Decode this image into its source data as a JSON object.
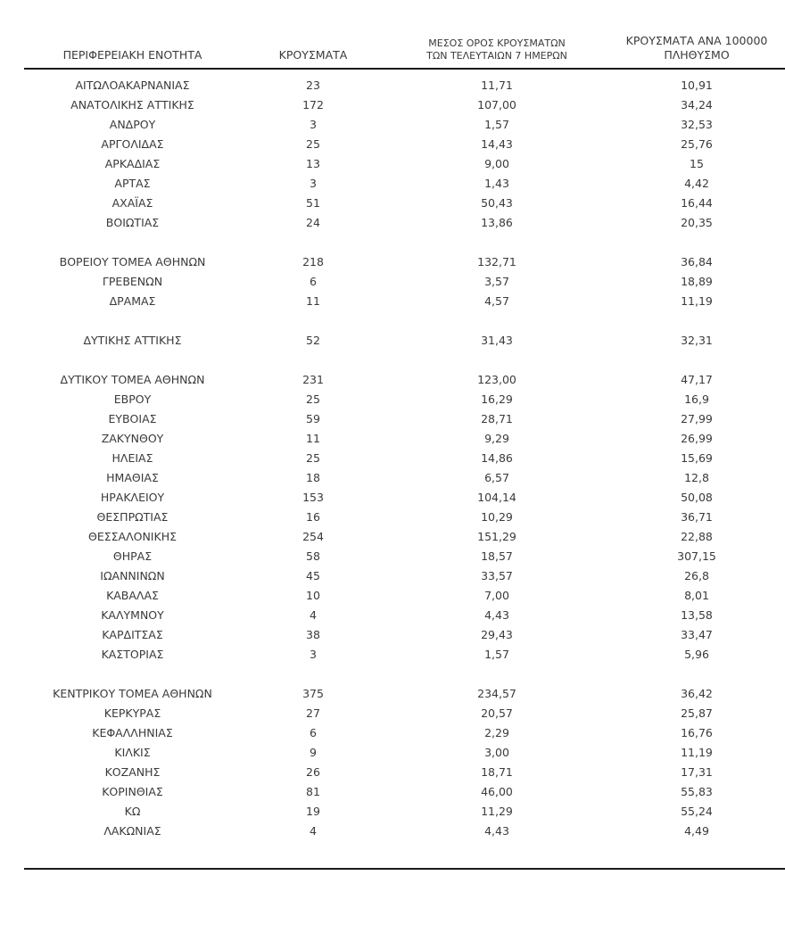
{
  "style": {
    "text_color": "#3a3a3a",
    "rule_color": "#1a1a1a",
    "background": "#ffffff"
  },
  "table": {
    "columns": [
      {
        "key": "region",
        "label": "ΠΕΡΙΦΕΡΕΙΑΚΗ ΕΝΟΤΗΤΑ"
      },
      {
        "key": "cases",
        "label": "ΚΡΟΥΣΜΑΤΑ"
      },
      {
        "key": "avg7",
        "label": "ΜΕΣΟΣ ΟΡΟΣ ΚΡΟΥΣΜΑΤΩΝ ΤΩΝ ΤΕΛΕΥΤΑΙΩΝ 7 ΗΜΕΡΩΝ",
        "label_line1": "ΜΕΣΟΣ ΟΡΟΣ ΚΡΟΥΣΜΑΤΩΝ",
        "label_line2": "ΤΩΝ ΤΕΛΕΥΤΑΙΩΝ 7 ΗΜΕΡΩΝ"
      },
      {
        "key": "per100k",
        "label": "ΚΡΟΥΣΜΑΤΑ ΑΝΑ 100000 ΠΛΗΘΥΣΜΟ",
        "label_line1": "ΚΡΟΥΣΜΑΤΑ ΑΝΑ 100000",
        "label_line2": "ΠΛΗΘΥΣΜΟ"
      }
    ],
    "rows": [
      {
        "region": "ΑΙΤΩΛΟΑΚΑΡΝΑΝΙΑΣ",
        "cases": "23",
        "avg7": "11,71",
        "per100k": "10,91"
      },
      {
        "region": "ΑΝΑΤΟΛΙΚΗΣ ΑΤΤΙΚΗΣ",
        "cases": "172",
        "avg7": "107,00",
        "per100k": "34,24"
      },
      {
        "region": "ΑΝΔΡΟΥ",
        "cases": "3",
        "avg7": "1,57",
        "per100k": "32,53"
      },
      {
        "region": "ΑΡΓΟΛΙΔΑΣ",
        "cases": "25",
        "avg7": "14,43",
        "per100k": "25,76"
      },
      {
        "region": "ΑΡΚΑΔΙΑΣ",
        "cases": "13",
        "avg7": "9,00",
        "per100k": "15"
      },
      {
        "region": "ΑΡΤΑΣ",
        "cases": "3",
        "avg7": "1,43",
        "per100k": "4,42"
      },
      {
        "region": "ΑΧΑΪΑΣ",
        "cases": "51",
        "avg7": "50,43",
        "per100k": "16,44"
      },
      {
        "region": "ΒΟΙΩΤΙΑΣ",
        "cases": "24",
        "avg7": "13,86",
        "per100k": "20,35"
      },
      {
        "region": "ΒΟΡΕΙΟΥ ΤΟΜΕΑ ΑΘΗΝΩΝ",
        "cases": "218",
        "avg7": "132,71",
        "per100k": "36,84",
        "gap_before": true
      },
      {
        "region": "ΓΡΕΒΕΝΩΝ",
        "cases": "6",
        "avg7": "3,57",
        "per100k": "18,89"
      },
      {
        "region": "ΔΡΑΜΑΣ",
        "cases": "11",
        "avg7": "4,57",
        "per100k": "11,19"
      },
      {
        "region": "ΔΥΤΙΚΗΣ ΑΤΤΙΚΗΣ",
        "cases": "52",
        "avg7": "31,43",
        "per100k": "32,31",
        "gap_before": true
      },
      {
        "region": "ΔΥΤΙΚΟΥ ΤΟΜΕΑ ΑΘΗΝΩΝ",
        "cases": "231",
        "avg7": "123,00",
        "per100k": "47,17",
        "gap_before": true
      },
      {
        "region": "ΕΒΡΟΥ",
        "cases": "25",
        "avg7": "16,29",
        "per100k": "16,9"
      },
      {
        "region": "ΕΥΒΟΙΑΣ",
        "cases": "59",
        "avg7": "28,71",
        "per100k": "27,99"
      },
      {
        "region": "ΖΑΚΥΝΘΟΥ",
        "cases": "11",
        "avg7": "9,29",
        "per100k": "26,99"
      },
      {
        "region": "ΗΛΕΙΑΣ",
        "cases": "25",
        "avg7": "14,86",
        "per100k": "15,69"
      },
      {
        "region": "ΗΜΑΘΙΑΣ",
        "cases": "18",
        "avg7": "6,57",
        "per100k": "12,8"
      },
      {
        "region": "ΗΡΑΚΛΕΙΟΥ",
        "cases": "153",
        "avg7": "104,14",
        "per100k": "50,08"
      },
      {
        "region": "ΘΕΣΠΡΩΤΙΑΣ",
        "cases": "16",
        "avg7": "10,29",
        "per100k": "36,71"
      },
      {
        "region": "ΘΕΣΣΑΛΟΝΙΚΗΣ",
        "cases": "254",
        "avg7": "151,29",
        "per100k": "22,88"
      },
      {
        "region": "ΘΗΡΑΣ",
        "cases": "58",
        "avg7": "18,57",
        "per100k": "307,15"
      },
      {
        "region": "ΙΩΑΝΝΙΝΩΝ",
        "cases": "45",
        "avg7": "33,57",
        "per100k": "26,8"
      },
      {
        "region": "ΚΑΒΑΛΑΣ",
        "cases": "10",
        "avg7": "7,00",
        "per100k": "8,01"
      },
      {
        "region": "ΚΑΛΥΜΝΟΥ",
        "cases": "4",
        "avg7": "4,43",
        "per100k": "13,58"
      },
      {
        "region": "ΚΑΡΔΙΤΣΑΣ",
        "cases": "38",
        "avg7": "29,43",
        "per100k": "33,47"
      },
      {
        "region": "ΚΑΣΤΟΡΙΑΣ",
        "cases": "3",
        "avg7": "1,57",
        "per100k": "5,96"
      },
      {
        "region": "ΚΕΝΤΡΙΚΟΥ ΤΟΜΕΑ ΑΘΗΝΩΝ",
        "cases": "375",
        "avg7": "234,57",
        "per100k": "36,42",
        "gap_before": true
      },
      {
        "region": "ΚΕΡΚΥΡΑΣ",
        "cases": "27",
        "avg7": "20,57",
        "per100k": "25,87"
      },
      {
        "region": "ΚΕΦΑΛΛΗΝΙΑΣ",
        "cases": "6",
        "avg7": "2,29",
        "per100k": "16,76"
      },
      {
        "region": "ΚΙΛΚΙΣ",
        "cases": "9",
        "avg7": "3,00",
        "per100k": "11,19"
      },
      {
        "region": "ΚΟΖΑΝΗΣ",
        "cases": "26",
        "avg7": "18,71",
        "per100k": "17,31"
      },
      {
        "region": "ΚΟΡΙΝΘΙΑΣ",
        "cases": "81",
        "avg7": "46,00",
        "per100k": "55,83"
      },
      {
        "region": "ΚΩ",
        "cases": "19",
        "avg7": "11,29",
        "per100k": "55,24"
      },
      {
        "region": "ΛΑΚΩΝΙΑΣ",
        "cases": "4",
        "avg7": "4,43",
        "per100k": "4,49"
      }
    ]
  }
}
